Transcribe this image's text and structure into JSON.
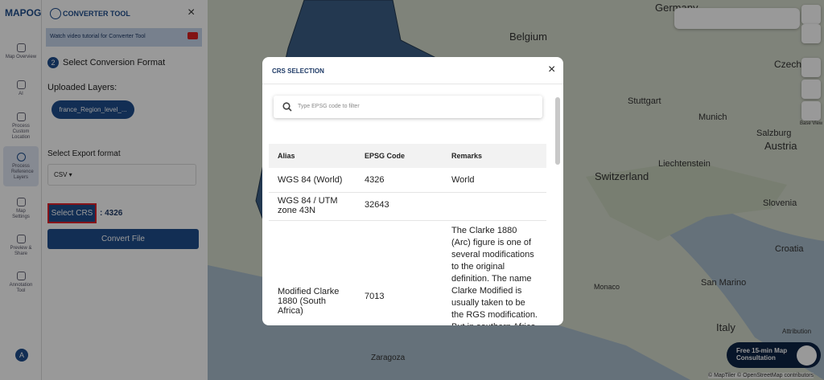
{
  "sidebar": {
    "logo": "MAPOG",
    "nav": [
      "Map Overview",
      "AI",
      "Process Custom Location",
      "Process Reference Layers",
      "Map Settings",
      "Preview & Share",
      "Annotation Tool"
    ],
    "avatar": "A"
  },
  "panel": {
    "title": "CONVERTER TOOL",
    "video_banner": "Watch video tutorial for Converter Tool",
    "step_number": "2",
    "step_title": "Select Conversion Format",
    "uploaded_label": "Uploaded Layers:",
    "layer_chip": "france_Region_level_...",
    "export_label": "Select Export format",
    "export_value": "CSV",
    "crs_button": "Select CRS",
    "crs_value": ": 4326",
    "convert_button": "Convert File"
  },
  "map": {
    "labels": [
      "Germany",
      "Belgium",
      "Czech Re",
      "Stuttgart",
      "Munich",
      "Salzburg",
      "Liechtenstein",
      "Switzerland",
      "Austria",
      "Slovenia",
      "Croatia",
      "San Marino",
      "Italy",
      "Zaragoza",
      "Monaco"
    ],
    "base_view": "Base View",
    "attribution": "Attribution",
    "copyright": "© MapTiler © OpenStreetMap contributors",
    "consultation": "Free 15-min Map Consultation"
  },
  "modal": {
    "title": "CRS SELECTION",
    "search_placeholder": "Type EPSG code to filter",
    "table": {
      "headers": [
        "Alias",
        "EPSG Code",
        "Remarks"
      ],
      "rows": [
        {
          "alias": "WGS 84 (World)",
          "code": "4326",
          "remarks": "World"
        },
        {
          "alias": "WGS 84 / UTM zone 43N",
          "code": "32643"
        },
        {
          "alias": "Modified Clarke 1880 (South Africa)",
          "code": "7013",
          "remarks": "The Clarke 1880 (Arc) figure is one of several modifications to the original definition. The name Clarke Modified is usually taken to be the RGS modification. But in southern Africa"
        }
      ]
    }
  }
}
